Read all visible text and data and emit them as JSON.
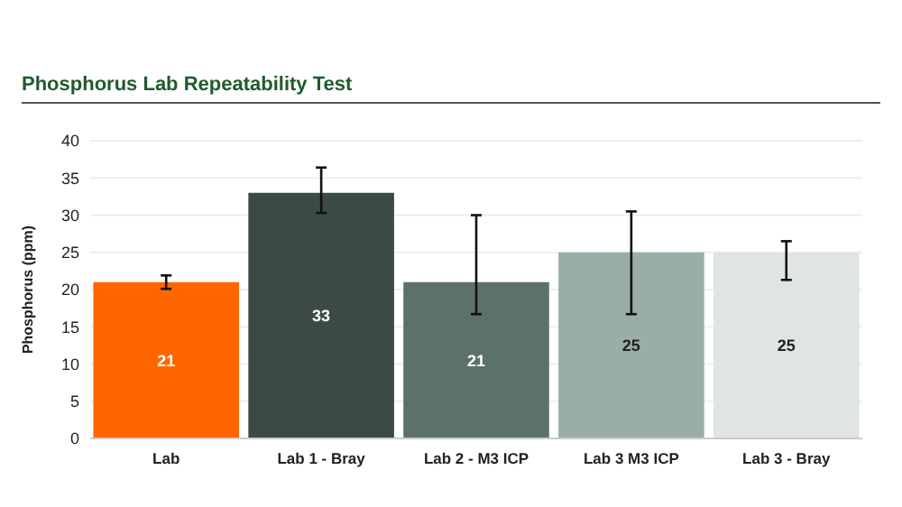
{
  "chart_data": {
    "type": "bar",
    "title": "Phosphorus Lab Repeatability Test",
    "ylabel": "Phosphorus (ppm)",
    "categories": [
      "Lab",
      "Lab 1 - Bray",
      "Lab 2 - M3 ICP",
      "Lab 3 M3 ICP",
      "Lab 3 - Bray"
    ],
    "values": [
      21,
      33,
      21,
      25,
      25
    ],
    "colors": [
      "#ff6600",
      "#3c4a45",
      "#5c7269",
      "#9aaea7",
      "#dfe5e3"
    ],
    "errors": [
      [
        20.1,
        21.9
      ],
      [
        30.3,
        36.4
      ],
      [
        16.7,
        30
      ],
      [
        16.7,
        30.5
      ],
      [
        21.3,
        26.5
      ]
    ],
    "ylim": [
      0,
      40
    ],
    "yticks": [
      0,
      5,
      10,
      15,
      20,
      25,
      30,
      35,
      40
    ],
    "grid": "y",
    "data_labels": true
  }
}
